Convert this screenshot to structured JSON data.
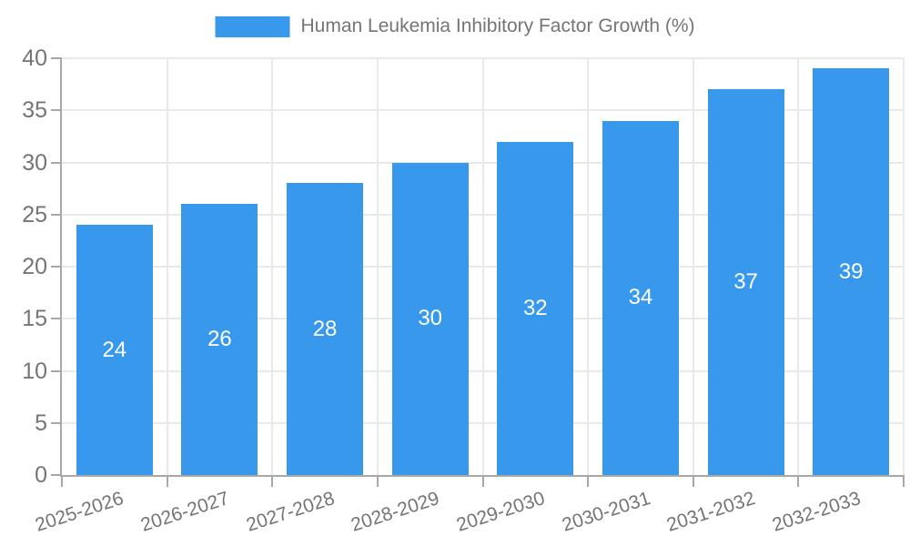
{
  "chart_data": {
    "type": "bar",
    "title": "Human Leukemia Inhibitory Factor Growth (%)",
    "categories": [
      "2025-2026",
      "2026-2027",
      "2027-2028",
      "2028-2029",
      "2029-2030",
      "2030-2031",
      "2031-2032",
      "2032-2033"
    ],
    "series": [
      {
        "name": "Human Leukemia Inhibitory Factor Growth (%)",
        "values": [
          24,
          26,
          28,
          30,
          32,
          34,
          37,
          39
        ]
      }
    ],
    "bar_value_labels": [
      "24",
      "26",
      "28",
      "30",
      "32",
      "34",
      "37",
      "39"
    ],
    "xlabel": "",
    "ylabel": "",
    "ylim": [
      0,
      40
    ],
    "ytick_step": 5,
    "ytick_labels": [
      "0",
      "5",
      "10",
      "15",
      "20",
      "25",
      "30",
      "35",
      "40"
    ],
    "grid": true,
    "legend_position": "top",
    "colors": {
      "bar": "#3899EC",
      "bar_label_text": "#FFFFFF",
      "axis": "#A8A8A8",
      "gridline": "#E9E9E9",
      "label_text": "#757575",
      "background": "#FFFFFF"
    }
  }
}
